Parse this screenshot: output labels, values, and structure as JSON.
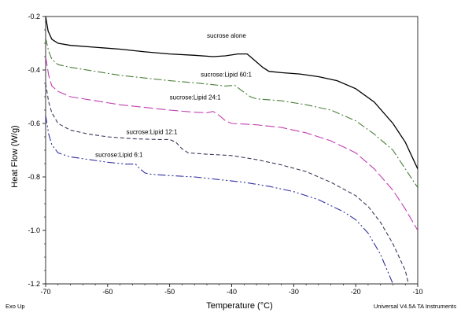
{
  "chart_data": {
    "type": "line",
    "xlabel": "Temperature (°C)",
    "ylabel": "Heat Flow (W/g)",
    "xlim": [
      -70,
      -10
    ],
    "ylim": [
      -1.2,
      -0.2
    ],
    "xticks": [
      -70,
      -60,
      -50,
      -40,
      -30,
      -20,
      -10
    ],
    "yticks": [
      -0.2,
      -0.4,
      -0.6,
      -0.8,
      -1.0,
      -1.2
    ],
    "xtick_labels": [
      "-70",
      "-60",
      "-50",
      "-40",
      "-30",
      "-20",
      "-10"
    ],
    "ytick_labels": [
      "-0.2",
      "-0.4",
      "-0.6",
      "-0.8",
      "-1.0",
      "-1.2"
    ],
    "grid": false,
    "footer_left": "Exo Up",
    "footer_right": "Universal V4.5A TA Instruments",
    "series": [
      {
        "name": "sucrose alone",
        "color": "#000000",
        "dash": "solid",
        "label_at": [
          -44,
          -0.28
        ],
        "points": [
          [
            -70,
            -0.2
          ],
          [
            -69.6,
            -0.255
          ],
          [
            -69,
            -0.285
          ],
          [
            -68,
            -0.3
          ],
          [
            -66,
            -0.308
          ],
          [
            -62,
            -0.315
          ],
          [
            -58,
            -0.322
          ],
          [
            -54,
            -0.332
          ],
          [
            -50,
            -0.34
          ],
          [
            -46,
            -0.345
          ],
          [
            -43,
            -0.35
          ],
          [
            -41,
            -0.347
          ],
          [
            -39,
            -0.34
          ],
          [
            -37.5,
            -0.34
          ],
          [
            -36.5,
            -0.36
          ],
          [
            -35,
            -0.39
          ],
          [
            -34,
            -0.405
          ],
          [
            -32,
            -0.41
          ],
          [
            -29,
            -0.415
          ],
          [
            -26,
            -0.425
          ],
          [
            -23,
            -0.44
          ],
          [
            -20,
            -0.47
          ],
          [
            -17,
            -0.52
          ],
          [
            -14,
            -0.6
          ],
          [
            -12,
            -0.67
          ],
          [
            -10,
            -0.77
          ]
        ]
      },
      {
        "name": "sucrose:Lipid 60:1",
        "color": "#4a7f3a",
        "dash": "10,3,2,3",
        "label_at": [
          -45,
          -0.425
        ],
        "points": [
          [
            -70,
            -0.28
          ],
          [
            -69.5,
            -0.33
          ],
          [
            -69,
            -0.36
          ],
          [
            -68,
            -0.38
          ],
          [
            -66,
            -0.39
          ],
          [
            -62,
            -0.405
          ],
          [
            -58,
            -0.42
          ],
          [
            -54,
            -0.43
          ],
          [
            -50,
            -0.44
          ],
          [
            -46,
            -0.448
          ],
          [
            -43,
            -0.455
          ],
          [
            -41,
            -0.46
          ],
          [
            -39.5,
            -0.457
          ],
          [
            -38.5,
            -0.475
          ],
          [
            -37,
            -0.5
          ],
          [
            -36,
            -0.508
          ],
          [
            -32,
            -0.515
          ],
          [
            -28,
            -0.53
          ],
          [
            -24,
            -0.55
          ],
          [
            -20,
            -0.59
          ],
          [
            -17,
            -0.64
          ],
          [
            -14,
            -0.7
          ],
          [
            -12,
            -0.77
          ],
          [
            -10,
            -0.84
          ]
        ]
      },
      {
        "name": "sucrose:Lipid 24:1",
        "color": "#c23fb0",
        "dash": "12,4",
        "label_at": [
          -50,
          -0.51
        ],
        "points": [
          [
            -70,
            -0.35
          ],
          [
            -69.5,
            -0.42
          ],
          [
            -69,
            -0.46
          ],
          [
            -68,
            -0.48
          ],
          [
            -66,
            -0.5
          ],
          [
            -62,
            -0.515
          ],
          [
            -58,
            -0.53
          ],
          [
            -54,
            -0.54
          ],
          [
            -50,
            -0.55
          ],
          [
            -46,
            -0.558
          ],
          [
            -44,
            -0.56
          ],
          [
            -43,
            -0.555
          ],
          [
            -42,
            -0.57
          ],
          [
            -41,
            -0.59
          ],
          [
            -40,
            -0.6
          ],
          [
            -36,
            -0.605
          ],
          [
            -32,
            -0.615
          ],
          [
            -28,
            -0.635
          ],
          [
            -24,
            -0.665
          ],
          [
            -20,
            -0.71
          ],
          [
            -17,
            -0.77
          ],
          [
            -14,
            -0.85
          ],
          [
            -12,
            -0.92
          ],
          [
            -10,
            -1.0
          ]
        ]
      },
      {
        "name": "sucrose:Lipid 12:1",
        "color": "#3a3a5a",
        "dash": "5,3",
        "label_at": [
          -57,
          -0.64
        ],
        "points": [
          [
            -70,
            -0.45
          ],
          [
            -69.5,
            -0.52
          ],
          [
            -69,
            -0.56
          ],
          [
            -68,
            -0.6
          ],
          [
            -66,
            -0.625
          ],
          [
            -63,
            -0.64
          ],
          [
            -60,
            -0.65
          ],
          [
            -56,
            -0.657
          ],
          [
            -52,
            -0.66
          ],
          [
            -50,
            -0.66
          ],
          [
            -49,
            -0.67
          ],
          [
            -48,
            -0.695
          ],
          [
            -47,
            -0.71
          ],
          [
            -44,
            -0.715
          ],
          [
            -40,
            -0.72
          ],
          [
            -36,
            -0.735
          ],
          [
            -32,
            -0.755
          ],
          [
            -28,
            -0.78
          ],
          [
            -24,
            -0.82
          ],
          [
            -20,
            -0.87
          ],
          [
            -18,
            -0.91
          ],
          [
            -16,
            -0.97
          ],
          [
            -14,
            -1.05
          ],
          [
            -12,
            -1.15
          ],
          [
            -11.5,
            -1.2
          ]
        ]
      },
      {
        "name": "sucrose:Lipid 6:1",
        "color": "#2e2f9e",
        "dash": "10,3,2,3,2,3",
        "label_at": [
          -62,
          -0.725
        ],
        "points": [
          [
            -70,
            -0.57
          ],
          [
            -69.5,
            -0.64
          ],
          [
            -69,
            -0.68
          ],
          [
            -68,
            -0.71
          ],
          [
            -66,
            -0.725
          ],
          [
            -63,
            -0.735
          ],
          [
            -60,
            -0.745
          ],
          [
            -57,
            -0.752
          ],
          [
            -55.5,
            -0.752
          ],
          [
            -55,
            -0.765
          ],
          [
            -54,
            -0.785
          ],
          [
            -53,
            -0.79
          ],
          [
            -50,
            -0.795
          ],
          [
            -46,
            -0.8
          ],
          [
            -42,
            -0.81
          ],
          [
            -38,
            -0.82
          ],
          [
            -34,
            -0.835
          ],
          [
            -30,
            -0.855
          ],
          [
            -26,
            -0.885
          ],
          [
            -22,
            -0.93
          ],
          [
            -20,
            -0.96
          ],
          [
            -18,
            -1.01
          ],
          [
            -16,
            -1.09
          ],
          [
            -14,
            -1.2
          ]
        ]
      }
    ]
  }
}
